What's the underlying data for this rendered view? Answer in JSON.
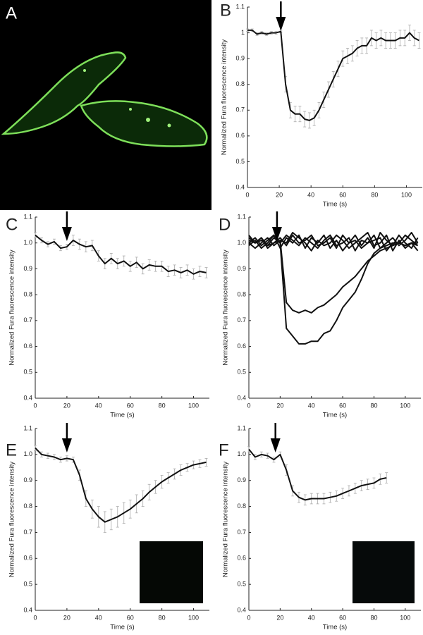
{
  "image_panel_label": "A",
  "chart_data": [
    {
      "type": "line",
      "panel": "B",
      "xlabel": "Time  (s)",
      "ylabel": "Normalized Fura fluorescence intensity",
      "xlim": [
        0,
        110
      ],
      "ylim": [
        0.4,
        1.1
      ],
      "xticks": [
        0,
        20,
        40,
        60,
        80,
        100
      ],
      "yticks": [
        0.4,
        0.5,
        0.6,
        0.7,
        0.8,
        0.9,
        1,
        1.1
      ],
      "arrow_x": 21,
      "x": [
        0,
        3,
        6,
        9,
        12,
        15,
        18,
        21,
        24,
        27,
        30,
        33,
        36,
        39,
        42,
        45,
        48,
        51,
        54,
        57,
        60,
        63,
        66,
        69,
        72,
        75,
        78,
        81,
        84,
        87,
        90,
        93,
        96,
        99,
        102,
        105,
        108
      ],
      "series": [
        {
          "color": "#111111",
          "values": [
            1.01,
            1.01,
            0.995,
            1.0,
            0.995,
            1.0,
            1.0,
            1.005,
            0.8,
            0.7,
            0.685,
            0.685,
            0.665,
            0.66,
            0.67,
            0.7,
            0.74,
            0.78,
            0.82,
            0.86,
            0.9,
            0.91,
            0.92,
            0.94,
            0.95,
            0.95,
            0.98,
            0.97,
            0.98,
            0.97,
            0.97,
            0.97,
            0.98,
            0.98,
            1.0,
            0.98,
            0.97
          ],
          "errors": [
            0.005,
            0.005,
            0.005,
            0.005,
            0.005,
            0.005,
            0.005,
            0.005,
            0.03,
            0.03,
            0.03,
            0.03,
            0.03,
            0.03,
            0.03,
            0.03,
            0.03,
            0.03,
            0.03,
            0.03,
            0.03,
            0.03,
            0.03,
            0.03,
            0.03,
            0.03,
            0.03,
            0.03,
            0.03,
            0.03,
            0.03,
            0.03,
            0.03,
            0.03,
            0.03,
            0.03,
            0.03
          ]
        }
      ]
    },
    {
      "type": "line",
      "panel": "C",
      "xlabel": "Time  (s)",
      "ylabel": "Normalized Fura fluorescence intensity",
      "xlim": [
        0,
        110
      ],
      "ylim": [
        0.4,
        1.1
      ],
      "xticks": [
        0,
        20,
        40,
        60,
        80,
        100
      ],
      "yticks": [
        0.4,
        0.5,
        0.6,
        0.7,
        0.8,
        0.9,
        {
          "value": 1,
          "label": "1.0"
        },
        1.1
      ],
      "arrow_x": 20,
      "x": [
        0,
        4,
        8,
        12,
        16,
        20,
        24,
        28,
        32,
        36,
        40,
        44,
        48,
        52,
        56,
        60,
        64,
        68,
        72,
        76,
        80,
        84,
        88,
        92,
        96,
        100,
        104,
        108
      ],
      "series": [
        {
          "color": "#111111",
          "values": [
            1.03,
            1.01,
            0.995,
            1.005,
            0.98,
            0.985,
            1.01,
            0.995,
            0.985,
            0.99,
            0.95,
            0.92,
            0.94,
            0.92,
            0.93,
            0.91,
            0.925,
            0.9,
            0.915,
            0.91,
            0.91,
            0.89,
            0.895,
            0.885,
            0.895,
            0.88,
            0.89,
            0.885
          ],
          "errors": [
            0.01,
            0.01,
            0.01,
            0.01,
            0.01,
            0.01,
            0.02,
            0.02,
            0.02,
            0.02,
            0.02,
            0.02,
            0.02,
            0.02,
            0.02,
            0.02,
            0.02,
            0.02,
            0.02,
            0.02,
            0.02,
            0.02,
            0.02,
            0.02,
            0.02,
            0.02,
            0.02,
            0.02
          ]
        }
      ]
    },
    {
      "type": "line",
      "panel": "D",
      "xlabel": "Time  (s)",
      "ylabel": "Normalized Fura fluorescence intensity",
      "xlim": [
        0,
        110
      ],
      "ylim": [
        0.4,
        1.1
      ],
      "xticks": [
        0,
        20,
        40,
        60,
        80,
        100
      ],
      "yticks": [
        0.4,
        0.5,
        0.6,
        0.7,
        0.8,
        0.9,
        {
          "value": 1,
          "label": "1.0"
        },
        1.1
      ],
      "arrow_x": 18,
      "x": [
        0,
        4,
        8,
        12,
        16,
        20,
        24,
        28,
        32,
        36,
        40,
        44,
        48,
        52,
        56,
        60,
        64,
        68,
        72,
        76,
        80,
        84,
        88,
        92,
        96,
        100,
        104,
        108
      ],
      "series": [
        {
          "color": "#111111",
          "values": [
            1.02,
            1.0,
            1.01,
            0.99,
            1.02,
            1.0,
            1.03,
            1.01,
            0.99,
            1.02,
            1.0,
            0.98,
            1.01,
            1.03,
            0.99,
            1.0,
            1.02,
            0.97,
            1.01,
            1.0,
            1.03,
            0.98,
            1.0,
            1.02,
            0.99,
            1.01,
            1.04,
            1.0
          ]
        },
        {
          "color": "#111111",
          "values": [
            1.0,
            0.98,
            1.0,
            1.02,
            0.99,
            1.01,
            1.0,
            1.04,
            1.02,
            1.0,
            0.97,
            1.01,
            0.99,
            1.0,
            1.03,
            1.01,
            0.98,
            1.0,
            1.02,
            1.04,
            0.99,
            1.0,
            1.03,
            0.97,
            1.01,
            0.98,
            1.0,
            0.97
          ]
        },
        {
          "color": "#111111",
          "values": [
            0.99,
            1.01,
            0.98,
            1.0,
            1.03,
            0.98,
            1.02,
            1.0,
            1.03,
            0.98,
            1.02,
            1.0,
            1.03,
            0.98,
            1.01,
            0.97,
            1.0,
            1.03,
            0.99,
            1.02,
            0.98,
            1.04,
            1.01,
            0.99,
            1.03,
            1.0,
            0.98,
            1.02
          ]
        },
        {
          "color": "#111111",
          "values": [
            1.03,
            1.0,
            1.02,
            0.98,
            1.0,
            1.02,
            0.99,
            1.03,
            1.0,
            1.01,
            1.03,
            0.99,
            1.0,
            1.02,
            0.98,
            1.03,
            1.0,
            1.01,
            0.98,
            1.0,
            1.01,
            1.02,
            0.97,
            1.0,
            1.0,
            1.03,
            1.01,
            0.99
          ]
        },
        {
          "color": "#111111",
          "values": [
            1.01,
            1.0,
            1.02,
            0.99,
            1.0,
            1.01,
            0.77,
            0.74,
            0.73,
            0.74,
            0.73,
            0.75,
            0.76,
            0.78,
            0.8,
            0.83,
            0.85,
            0.87,
            0.9,
            0.93,
            0.95,
            0.97,
            0.98,
            0.99,
            1.0,
            0.99,
            1.0,
            1.0
          ]
        },
        {
          "color": "#111111",
          "values": [
            1.0,
            1.02,
            0.99,
            1.01,
            1.03,
            1.0,
            0.67,
            0.64,
            0.61,
            0.61,
            0.62,
            0.62,
            0.65,
            0.66,
            0.7,
            0.75,
            0.78,
            0.81,
            0.86,
            0.92,
            0.96,
            0.98,
            0.99,
            1.0,
            1.0,
            0.99,
            1.0,
            0.99
          ]
        }
      ]
    },
    {
      "type": "line",
      "panel": "E",
      "xlabel": "Time  (s)",
      "ylabel": "Normalized Fura fluorescence intensity",
      "xlim": [
        0,
        110
      ],
      "ylim": [
        0.4,
        1.1
      ],
      "xticks": [
        0,
        20,
        40,
        60,
        80,
        100
      ],
      "yticks": [
        0.4,
        0.5,
        0.6,
        0.7,
        0.8,
        0.9,
        {
          "value": 1,
          "label": "1.0"
        },
        1.1
      ],
      "arrow_x": 20,
      "x": [
        0,
        4,
        8,
        12,
        16,
        20,
        24,
        28,
        32,
        36,
        40,
        44,
        48,
        52,
        56,
        60,
        64,
        68,
        72,
        76,
        80,
        84,
        88,
        92,
        96,
        100,
        104,
        108
      ],
      "series": [
        {
          "color": "#111111",
          "values": [
            1.025,
            1.0,
            0.995,
            0.99,
            0.98,
            0.985,
            0.98,
            0.92,
            0.83,
            0.79,
            0.76,
            0.74,
            0.75,
            0.76,
            0.775,
            0.79,
            0.81,
            0.83,
            0.855,
            0.875,
            0.895,
            0.91,
            0.925,
            0.94,
            0.95,
            0.96,
            0.965,
            0.97
          ],
          "errors": [
            0.01,
            0.01,
            0.01,
            0.01,
            0.01,
            0.01,
            0.01,
            0.02,
            0.03,
            0.035,
            0.04,
            0.04,
            0.04,
            0.04,
            0.04,
            0.035,
            0.035,
            0.03,
            0.03,
            0.025,
            0.025,
            0.02,
            0.02,
            0.02,
            0.015,
            0.015,
            0.015,
            0.015
          ]
        }
      ]
    },
    {
      "type": "line",
      "panel": "F",
      "xlabel": "Time  (s)",
      "ylabel": "Normalized Fura fluorescence intensity",
      "xlim": [
        0,
        110
      ],
      "ylim": [
        0.4,
        1.1
      ],
      "xticks": [
        0,
        20,
        40,
        60,
        80,
        100
      ],
      "yticks": [
        0.4,
        0.5,
        0.6,
        0.7,
        0.8,
        0.9,
        {
          "value": 1,
          "label": "1.0"
        },
        1.1
      ],
      "arrow_x": 17,
      "x": [
        0,
        4,
        8,
        12,
        16,
        20,
        24,
        28,
        32,
        36,
        40,
        44,
        48,
        52,
        56,
        60,
        64,
        68,
        72,
        76,
        80,
        84,
        88
      ],
      "series": [
        {
          "color": "#111111",
          "values": [
            1.02,
            0.99,
            1.0,
            0.995,
            0.98,
            1.0,
            0.94,
            0.86,
            0.835,
            0.825,
            0.83,
            0.83,
            0.83,
            0.835,
            0.84,
            0.85,
            0.86,
            0.87,
            0.88,
            0.885,
            0.89,
            0.905,
            0.91
          ],
          "errors": [
            0.01,
            0.01,
            0.01,
            0.01,
            0.01,
            0.01,
            0.02,
            0.02,
            0.02,
            0.02,
            0.02,
            0.02,
            0.02,
            0.02,
            0.02,
            0.02,
            0.02,
            0.02,
            0.02,
            0.02,
            0.02,
            0.02,
            0.02
          ]
        }
      ]
    }
  ]
}
